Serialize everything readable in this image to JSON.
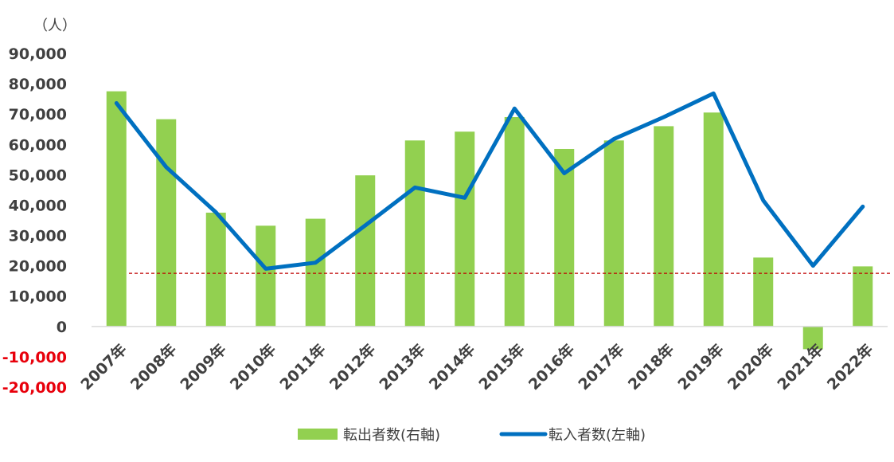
{
  "chart_data": {
    "type": "bar+line",
    "unit_label": "（人）",
    "categories": [
      "2007年",
      "2008年",
      "2009年",
      "2010年",
      "2011年",
      "2012年",
      "2013年",
      "2014年",
      "2015年",
      "2016年",
      "2017年",
      "2018年",
      "2019年",
      "2020年",
      "2021年",
      "2022年"
    ],
    "series": [
      {
        "name": "転出者数(右軸)",
        "type": "bar",
        "color": "#92d050",
        "values": [
          77500,
          68300,
          37500,
          33200,
          35500,
          49800,
          61300,
          64200,
          69000,
          58500,
          61300,
          66000,
          70500,
          22700,
          -7500,
          19800
        ]
      },
      {
        "name": "転入者数(左軸)",
        "type": "line",
        "color": "#0070c0",
        "values": [
          73600,
          52500,
          37600,
          19000,
          21000,
          33300,
          45800,
          42400,
          71800,
          50500,
          61800,
          69000,
          76800,
          41500,
          20000,
          39500
        ]
      }
    ],
    "reference_line": {
      "value": 17500,
      "color": "#c00000",
      "style": "dashed"
    },
    "yaxis": {
      "ylim": [
        -20000,
        90000
      ],
      "ticks": [
        90000,
        80000,
        70000,
        60000,
        50000,
        40000,
        30000,
        20000,
        10000,
        0,
        -10000,
        -20000
      ],
      "tick_labels": [
        "90,000",
        "80,000",
        "70,000",
        "60,000",
        "50,000",
        "40,000",
        "30,000",
        "20,000",
        "10,000",
        "0",
        "-10,000",
        "-20,000"
      ],
      "negative_color": "#e8000b"
    },
    "grid": false,
    "legend_position": "bottom"
  }
}
